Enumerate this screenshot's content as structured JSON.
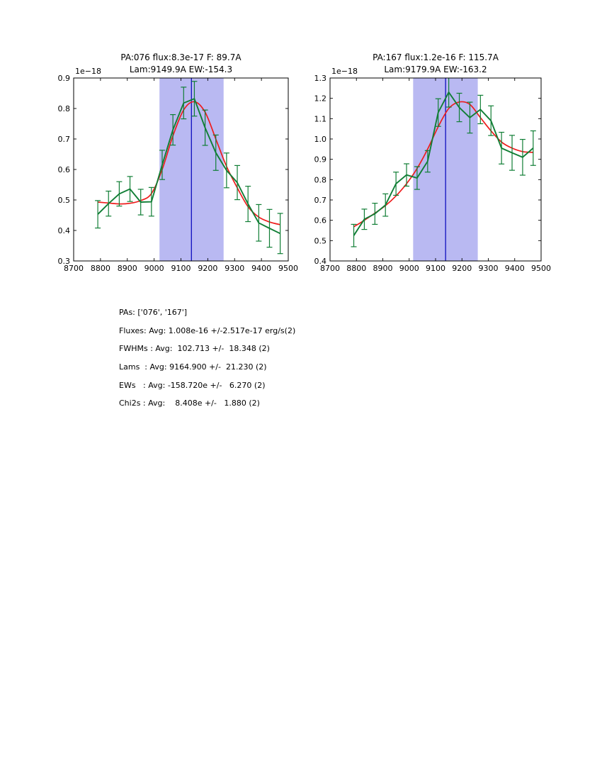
{
  "figure": {
    "background": "#ffffff"
  },
  "colors": {
    "data_green": "#107e35",
    "fit_red": "#ee1c1c",
    "shade": "#b9b9f2",
    "vline": "#0000bb",
    "axis": "#000000"
  },
  "chart_data": [
    {
      "type": "line",
      "title1": "PA:076 flux:8.3e-17 F: 89.7A",
      "title2": "Lam:9149.9A EW:-154.3",
      "offset_label": "1e−18",
      "xlim": [
        8700,
        9500
      ],
      "ylim": [
        0.3,
        0.9
      ],
      "xticks": [
        8700,
        8800,
        8900,
        9000,
        9100,
        9200,
        9300,
        9400,
        9500
      ],
      "yticks": [
        "0.3",
        "0.4",
        "0.5",
        "0.6",
        "0.7",
        "0.8",
        "0.9"
      ],
      "shade": {
        "x0": 9020,
        "x1": 9259
      },
      "vline": 9139,
      "x": [
        8790,
        8830,
        8870,
        8910,
        8950,
        8990,
        9030,
        9070,
        9110,
        9150,
        9190,
        9230,
        9270,
        9310,
        9350,
        9390,
        9430,
        9470
      ],
      "series": [
        {
          "name": "data",
          "values": [
            0.453,
            0.488,
            0.52,
            0.536,
            0.493,
            0.494,
            0.615,
            0.73,
            0.818,
            0.832,
            0.737,
            0.655,
            0.597,
            0.557,
            0.487,
            0.425,
            0.407,
            0.39
          ],
          "errors": [
            0.045,
            0.041,
            0.04,
            0.041,
            0.042,
            0.047,
            0.048,
            0.05,
            0.052,
            0.057,
            0.058,
            0.058,
            0.057,
            0.056,
            0.058,
            0.06,
            0.062,
            0.066
          ]
        },
        {
          "name": "fit",
          "values": [
            0.493,
            0.49,
            0.487,
            0.489,
            0.498,
            0.521,
            0.6,
            0.71,
            0.795,
            0.822,
            0.788,
            0.7,
            0.61,
            0.54,
            0.478,
            0.444,
            0.428,
            0.419
          ]
        }
      ]
    },
    {
      "type": "line",
      "title1": "PA:167 flux:1.2e-16 F: 115.7A",
      "title2": "Lam:9179.9A EW:-163.2",
      "offset_label": "1e−18",
      "xlim": [
        8700,
        9500
      ],
      "ylim": [
        0.4,
        1.3
      ],
      "xticks": [
        8700,
        8800,
        8900,
        9000,
        9100,
        9200,
        9300,
        9400,
        9500
      ],
      "yticks": [
        "0.4",
        "0.5",
        "0.6",
        "0.7",
        "0.8",
        "0.9",
        "1.0",
        "1.1",
        "1.2",
        "1.3"
      ],
      "shade": {
        "x0": 9015,
        "x1": 9260
      },
      "vline": 9138,
      "x": [
        8790,
        8830,
        8870,
        8910,
        8950,
        8990,
        9030,
        9070,
        9110,
        9150,
        9190,
        9230,
        9270,
        9310,
        9350,
        9390,
        9430,
        9470
      ],
      "series": [
        {
          "name": "data",
          "values": [
            0.525,
            0.605,
            0.632,
            0.675,
            0.78,
            0.823,
            0.808,
            0.89,
            1.13,
            1.23,
            1.155,
            1.105,
            1.145,
            1.09,
            0.955,
            0.932,
            0.91,
            0.955
          ],
          "errors": [
            0.055,
            0.05,
            0.052,
            0.055,
            0.057,
            0.055,
            0.056,
            0.053,
            0.068,
            0.073,
            0.07,
            0.076,
            0.07,
            0.073,
            0.078,
            0.086,
            0.088,
            0.085
          ]
        },
        {
          "name": "fit",
          "values": [
            0.568,
            0.6,
            0.635,
            0.672,
            0.72,
            0.78,
            0.855,
            0.95,
            1.06,
            1.15,
            1.182,
            1.17,
            1.105,
            1.04,
            0.985,
            0.955,
            0.938,
            0.934
          ]
        }
      ]
    }
  ],
  "stats": {
    "lines": [
      "PAs: ['076', '167']",
      "Fluxes: Avg: 1.008e-16 +/-2.517e-17 erg/s(2)",
      "FWHMs : Avg:  102.713 +/-  18.348 (2)",
      "Lams  : Avg: 9164.900 +/-  21.230 (2)",
      "EWs   : Avg: -158.720e +/-   6.270 (2)",
      "Chi2s : Avg:    8.408e +/-   1.880 (2)"
    ]
  }
}
